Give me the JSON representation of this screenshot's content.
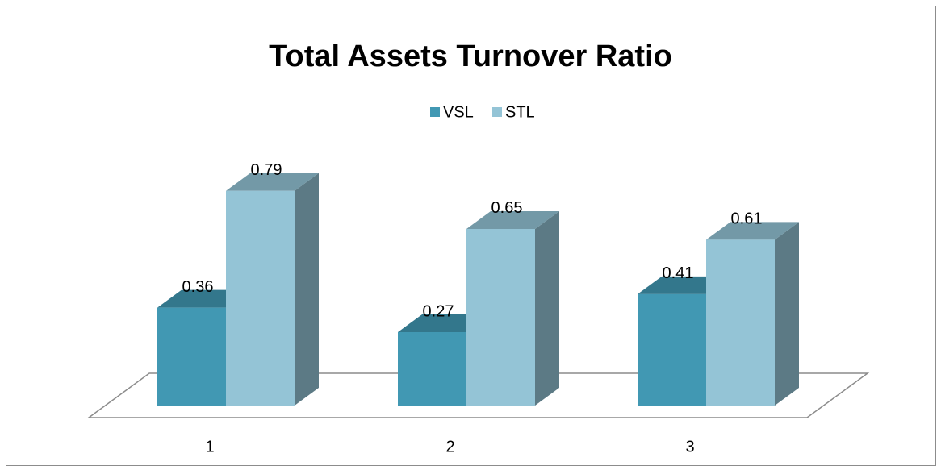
{
  "chart_data": {
    "type": "bar3d",
    "title": "Total Assets Turnover Ratio",
    "categories": [
      "1",
      "2",
      "3"
    ],
    "series": [
      {
        "name": "VSL",
        "color": "#4198b3",
        "values": [
          0.36,
          0.27,
          0.41
        ]
      },
      {
        "name": "STL",
        "color": "#94c4d6",
        "values": [
          0.79,
          0.65,
          0.61
        ]
      }
    ],
    "legend": "top"
  }
}
